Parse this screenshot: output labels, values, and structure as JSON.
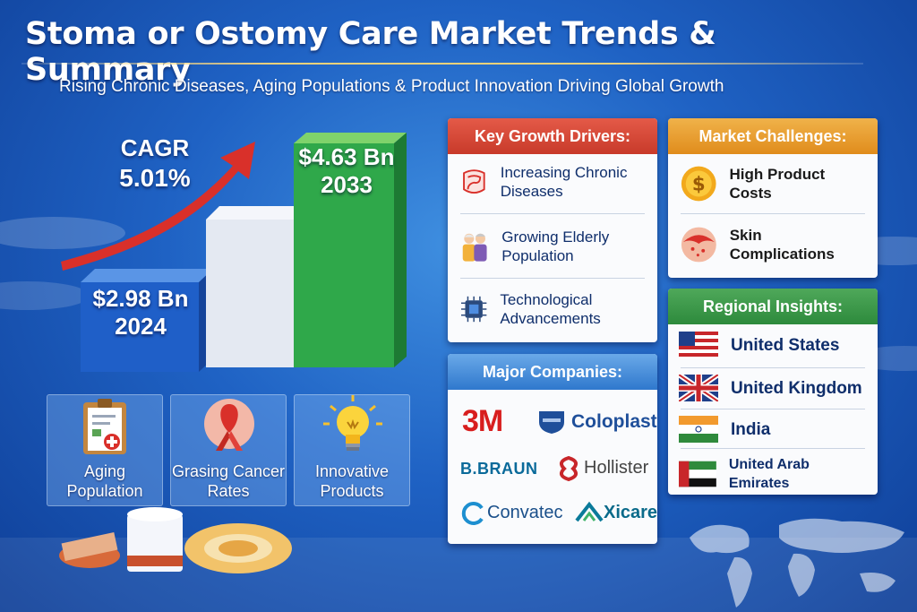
{
  "header": {
    "title": "Stoma or Ostomy Care Market Trends & Summary",
    "subtitle": "Rising Chronic Diseases, Aging Populations & Product Innovation Driving Global Growth"
  },
  "growth_chart": {
    "cagr_label": "CAGR",
    "cagr_value": "5.01%",
    "start_value": "$2.98 Bn",
    "start_year": "2024",
    "end_value": "$4.63 Bn",
    "end_year": "2033"
  },
  "factor_tiles": [
    {
      "label": "Aging Population",
      "icon": "clipboard-icon"
    },
    {
      "label": "Grasing Cancer Rates",
      "icon": "ribbon-icon"
    },
    {
      "label": "Innovative Products",
      "icon": "lightbulb-icon"
    }
  ],
  "drivers": {
    "heading": "Key Growth Drivers:",
    "items": [
      {
        "label": "Increasing Chronic Diseases",
        "icon": "intestine-icon"
      },
      {
        "label": "Growing Elderly Population",
        "icon": "elderly-couple-icon"
      },
      {
        "label": "Technological Advancements",
        "icon": "chip-icon"
      }
    ]
  },
  "challenges": {
    "heading": "Market Challenges:",
    "items": [
      {
        "label": "High Product Costs",
        "icon": "dollar-coin-icon"
      },
      {
        "label": "Skin Complications",
        "icon": "skin-icon"
      }
    ]
  },
  "companies": {
    "heading": "Major Companies:",
    "logos": [
      "3M",
      "Coloplast",
      "B.BRAUN",
      "Hollister",
      "Convatec",
      "Xicare"
    ]
  },
  "regions": {
    "heading": "Regional Insights:",
    "items": [
      {
        "label": "United States",
        "icon": "us-flag-icon"
      },
      {
        "label": "United Kingdom",
        "icon": "uk-flag-icon"
      },
      {
        "label": "India",
        "icon": "india-flag-icon"
      },
      {
        "label": "United Arab Emirates",
        "icon": "uae-flag-icon"
      }
    ]
  },
  "colors": {
    "background": "#1f62c4",
    "drivers_header": "#d8473a",
    "challenges_header": "#ea9f30",
    "companies_header": "#3f88d8",
    "regions_header": "#3b9a48",
    "end_bar": "#2fa84a"
  }
}
